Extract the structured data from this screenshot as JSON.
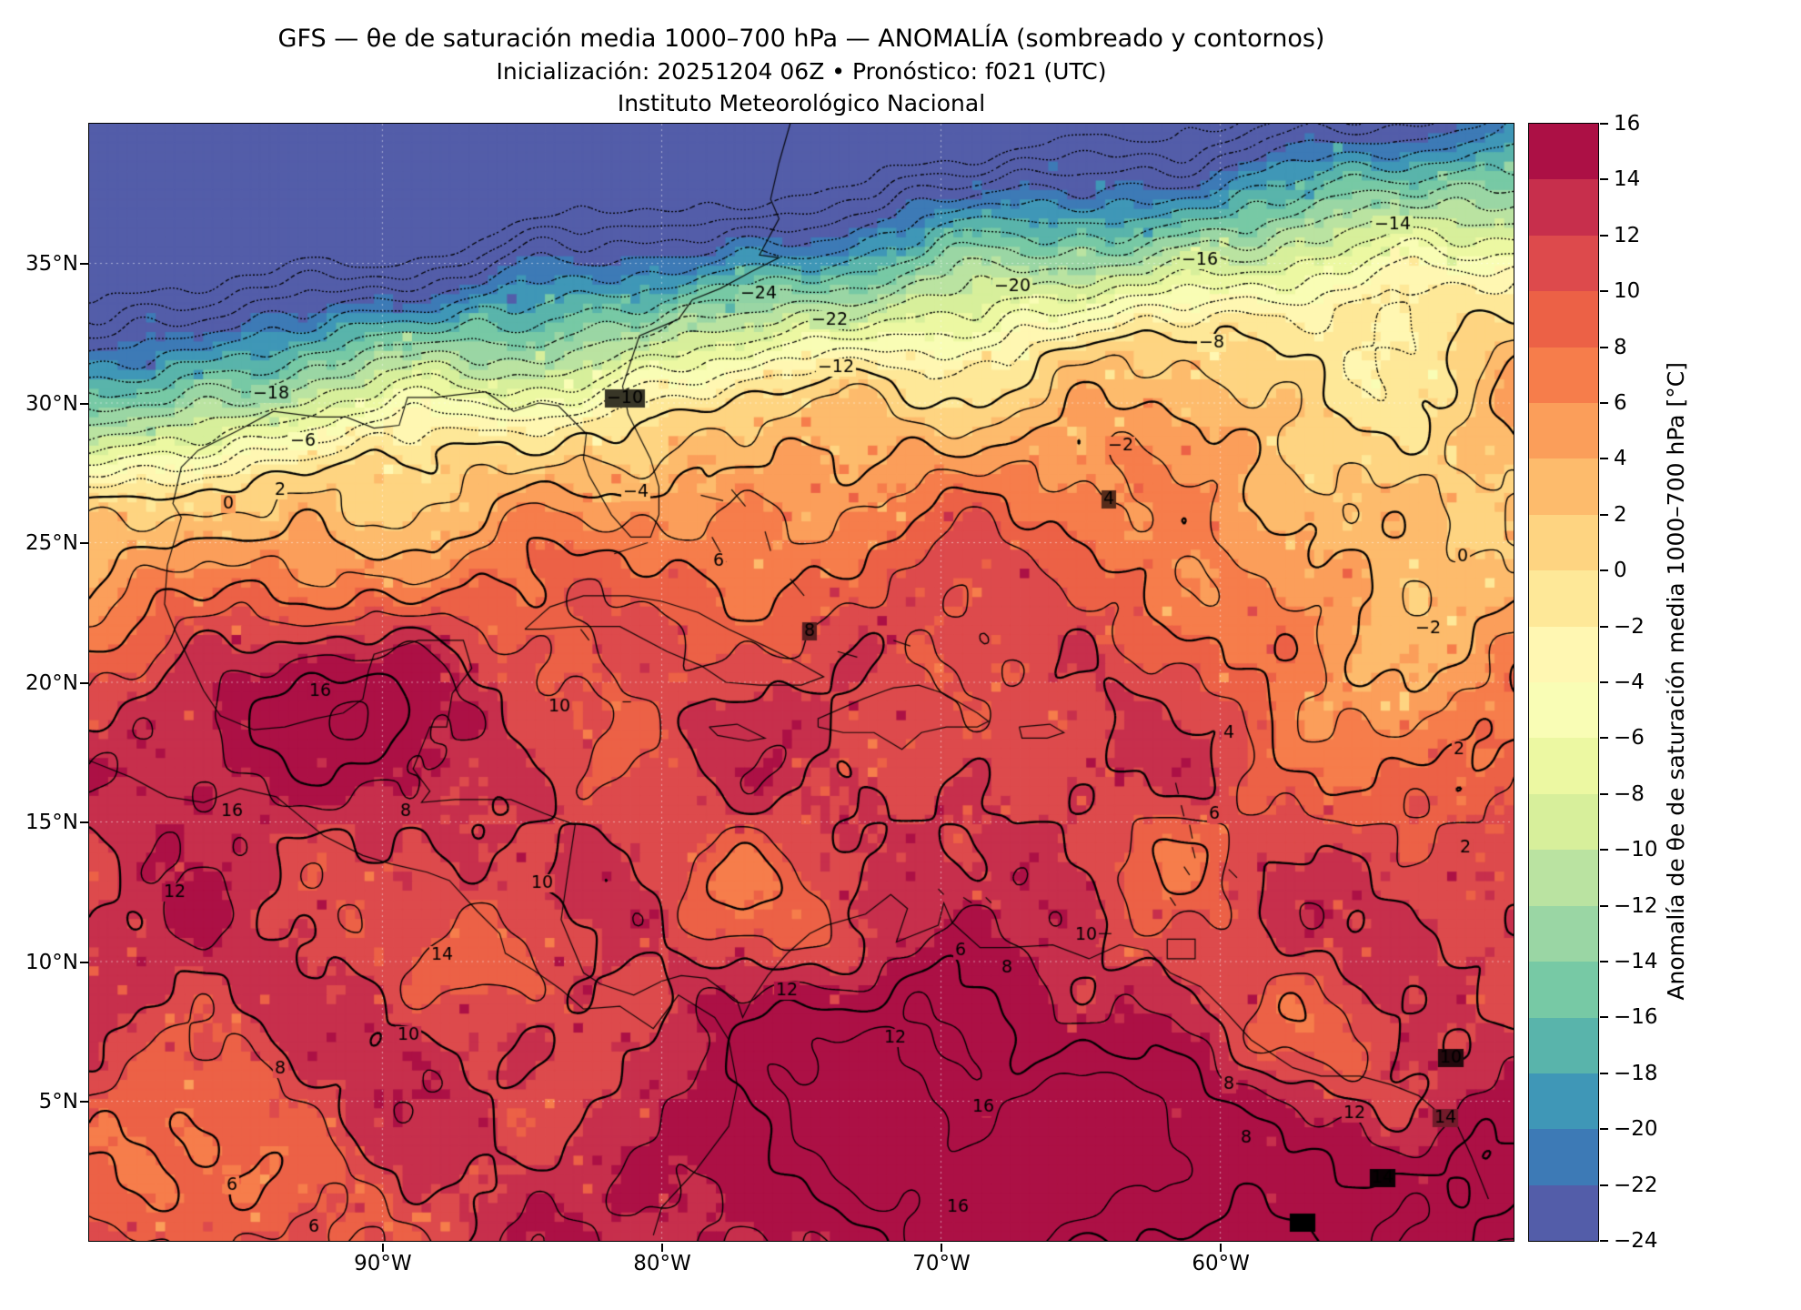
{
  "title": {
    "line1": "GFS — θe de saturación media 1000–700 hPa — ANOMALÍA (sombreado y contornos)",
    "line2": "Inicialización: 20251204 06Z   •   Pronóstico: f021 (UTC)",
    "line3": "Instituto Meteorológico Nacional"
  },
  "chart_data": {
    "type": "heatmap",
    "field_name": "Anomalía de θe de saturación media 1000–700 hPa",
    "units": "°C",
    "model": "GFS",
    "init": "20251204 06Z",
    "forecast_hour": "f021 (UTC)",
    "value_range_shown": [
      -24,
      16
    ],
    "contour_interval": 2,
    "negative_contour_style": "dotted",
    "grid": true,
    "x_axis": {
      "tick_labels": [
        "90°W",
        "80°W",
        "70°W",
        "60°W"
      ],
      "tick_values": [
        -90,
        -80,
        -70,
        -60
      ],
      "range": [
        -100.5,
        -49.5
      ]
    },
    "y_axis": {
      "tick_labels": [
        "35°N",
        "30°N",
        "25°N",
        "20°N",
        "15°N",
        "10°N",
        "5°N"
      ],
      "tick_values": [
        35,
        30,
        25,
        20,
        15,
        10,
        5
      ],
      "range": [
        0,
        40
      ]
    },
    "colorbar": {
      "label": "Anomalía de θe de saturación media 1000–700 hPa [°C]",
      "tick_labels": [
        "16",
        "14",
        "12",
        "10",
        "8",
        "6",
        "4",
        "2",
        "0",
        "−2",
        "−4",
        "−6",
        "−8",
        "−10",
        "−12",
        "−14",
        "−16",
        "−18",
        "−20",
        "−22",
        "−24"
      ],
      "tick_values": [
        16,
        14,
        12,
        10,
        8,
        6,
        4,
        2,
        0,
        -2,
        -4,
        -6,
        -8,
        -10,
        -12,
        -14,
        -16,
        -18,
        -20,
        -22,
        -24
      ],
      "min": -24,
      "max": 16,
      "step": 2,
      "colormap": "Spectral_r",
      "colormap_stops_low_to_high": [
        "#5e4fa2",
        "#3288bd",
        "#66c2a5",
        "#abdda4",
        "#e6f598",
        "#ffffbf",
        "#fee08b",
        "#fdae61",
        "#f46d43",
        "#d53e4f",
        "#9e0142"
      ]
    },
    "contour_labels": [
      {
        "v": "−14",
        "x": 0.915,
        "y": 0.09
      },
      {
        "v": "−16",
        "x": 0.78,
        "y": 0.122
      },
      {
        "v": "−20",
        "x": 0.648,
        "y": 0.146
      },
      {
        "v": "−24",
        "x": 0.47,
        "y": 0.152
      },
      {
        "v": "−22",
        "x": 0.52,
        "y": 0.176
      },
      {
        "v": "−12",
        "x": 0.524,
        "y": 0.218
      },
      {
        "v": "−10",
        "x": 0.376,
        "y": 0.246
      },
      {
        "v": "−8",
        "x": 0.788,
        "y": 0.196
      },
      {
        "v": "−18",
        "x": 0.128,
        "y": 0.242
      },
      {
        "v": "−6",
        "x": 0.15,
        "y": 0.284
      },
      {
        "v": "−4",
        "x": 0.384,
        "y": 0.33
      },
      {
        "v": "−2",
        "x": 0.724,
        "y": 0.288
      },
      {
        "v": "0",
        "x": 0.098,
        "y": 0.34
      },
      {
        "v": "2",
        "x": 0.134,
        "y": 0.328
      },
      {
        "v": "4",
        "x": 0.716,
        "y": 0.336
      },
      {
        "v": "6",
        "x": 0.442,
        "y": 0.392
      },
      {
        "v": "0",
        "x": 0.964,
        "y": 0.388
      },
      {
        "v": "−2",
        "x": 0.94,
        "y": 0.452
      },
      {
        "v": "2",
        "x": 0.962,
        "y": 0.56
      },
      {
        "v": "4",
        "x": 0.8,
        "y": 0.546
      },
      {
        "v": "16",
        "x": 0.162,
        "y": 0.508
      },
      {
        "v": "8",
        "x": 0.506,
        "y": 0.454
      },
      {
        "v": "10",
        "x": 0.33,
        "y": 0.522
      },
      {
        "v": "16",
        "x": 0.1,
        "y": 0.616
      },
      {
        "v": "8",
        "x": 0.222,
        "y": 0.616
      },
      {
        "v": "12",
        "x": 0.06,
        "y": 0.688
      },
      {
        "v": "10",
        "x": 0.318,
        "y": 0.68
      },
      {
        "v": "6",
        "x": 0.79,
        "y": 0.618
      },
      {
        "v": "14",
        "x": 0.248,
        "y": 0.744
      },
      {
        "v": "12",
        "x": 0.49,
        "y": 0.776
      },
      {
        "v": "6",
        "x": 0.612,
        "y": 0.74
      },
      {
        "v": "8",
        "x": 0.644,
        "y": 0.756
      },
      {
        "v": "10",
        "x": 0.7,
        "y": 0.726
      },
      {
        "v": "10",
        "x": 0.224,
        "y": 0.816
      },
      {
        "v": "8",
        "x": 0.134,
        "y": 0.846
      },
      {
        "v": "2",
        "x": 0.966,
        "y": 0.648
      },
      {
        "v": "16",
        "x": 0.628,
        "y": 0.88
      },
      {
        "v": "8",
        "x": 0.8,
        "y": 0.86
      },
      {
        "v": "8",
        "x": 0.812,
        "y": 0.908
      },
      {
        "v": "10",
        "x": 0.956,
        "y": 0.836
      },
      {
        "v": "14",
        "x": 0.952,
        "y": 0.89
      },
      {
        "v": "12",
        "x": 0.888,
        "y": 0.886
      },
      {
        "v": "16",
        "x": 0.852,
        "y": 0.984
      },
      {
        "v": "16",
        "x": 0.61,
        "y": 0.97
      },
      {
        "v": "6",
        "x": 0.1,
        "y": 0.95
      },
      {
        "v": "6",
        "x": 0.158,
        "y": 0.988
      },
      {
        "v": "14",
        "x": 0.908,
        "y": 0.944
      },
      {
        "v": "12",
        "x": 0.566,
        "y": 0.818
      }
    ]
  }
}
